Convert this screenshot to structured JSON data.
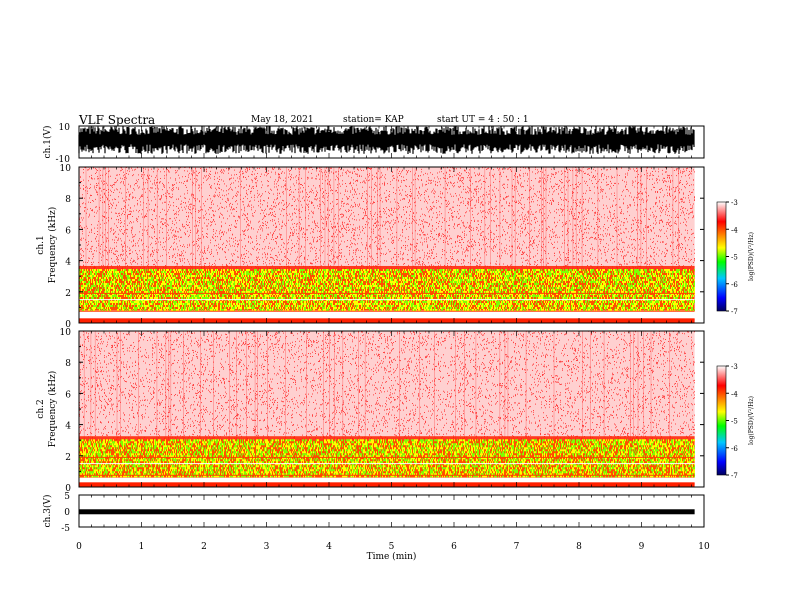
{
  "header": {
    "title": "VLF Spectra",
    "date": "May 18, 2021",
    "station": "station= KAP",
    "start": "start UT =   4 : 50 : 1"
  },
  "chart_data": [
    {
      "type": "line",
      "panel": "ch1-waveform",
      "ylabel": "ch.1(V)",
      "ylim": [
        -10,
        10
      ],
      "y_ticks": [
        "10",
        "-10"
      ],
      "description_values": {
        "min": -10,
        "max": 10
      }
    },
    {
      "type": "heatmap",
      "panel": "ch1-spectrogram",
      "ylabel": "ch.1 Frequency (kHz)",
      "ylim": [
        0,
        10
      ],
      "y_ticks": [
        "0",
        "2",
        "4",
        "6",
        "8",
        "10"
      ],
      "strong_band_khz": [
        0.8,
        3.4
      ],
      "weak_band_khz": [
        3.4,
        10
      ],
      "colorbar": {
        "label": "log(PSD)(V²/Hz)",
        "range": [
          -7,
          -3
        ],
        "ticks": [
          "-3",
          "-4",
          "-5",
          "-6",
          "-7"
        ]
      }
    },
    {
      "type": "heatmap",
      "panel": "ch2-spectrogram",
      "ylabel": "ch.2 Frequency (kHz)",
      "ylim": [
        0,
        10
      ],
      "y_ticks": [
        "0",
        "2",
        "4",
        "6",
        "8",
        "10"
      ],
      "strong_band_khz": [
        0.6,
        3.0
      ],
      "weak_band_khz": [
        3.0,
        10
      ],
      "colorbar": {
        "label": "log(PSD)(V²/Hz)",
        "range": [
          -7,
          -3
        ],
        "ticks": [
          "-3",
          "-4",
          "-5",
          "-6",
          "-7"
        ]
      }
    },
    {
      "type": "line",
      "panel": "ch3-waveform",
      "ylabel": "ch.3(V)",
      "ylim": [
        -5,
        5
      ],
      "y_ticks": [
        "5",
        "0",
        "-5"
      ],
      "level_v": -0.4
    }
  ],
  "x_axis": {
    "label": "Time (min)",
    "xlim": [
      0,
      10
    ],
    "data_end": 9.85,
    "ticks": [
      "0",
      "1",
      "2",
      "3",
      "4",
      "5",
      "6",
      "7",
      "8",
      "9",
      "10"
    ]
  },
  "colors": {
    "waveform": "#000000",
    "spec_background": "#ff0000",
    "cmap": [
      "#000080",
      "#0000ff",
      "#00c8ff",
      "#00ff00",
      "#ffff00",
      "#ff8000",
      "#ff0000",
      "#ffffff"
    ]
  }
}
